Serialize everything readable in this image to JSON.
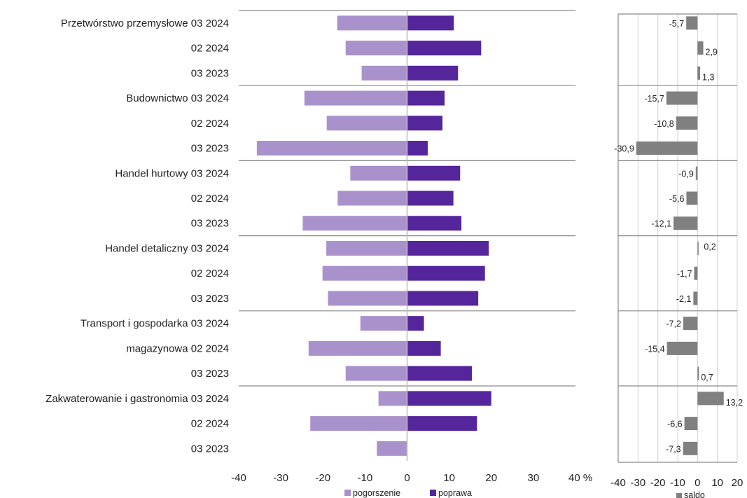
{
  "chart_data": [
    {
      "type": "bar",
      "orientation": "horizontal",
      "stacked": "diverging",
      "unit": "%",
      "rows": [
        {
          "label": "Przetwórstwo przemysłowe 03 2024",
          "pogorszenie": -16.6,
          "poprawa": 11.1
        },
        {
          "label": "02 2024",
          "pogorszenie": -14.6,
          "poprawa": 17.6
        },
        {
          "label": "03 2023",
          "pogorszenie": -10.8,
          "poprawa": 12.1
        },
        {
          "label": "Budownictwo 03 2024",
          "pogorszenie": -24.4,
          "poprawa": 8.9
        },
        {
          "label": "02 2024",
          "pogorszenie": -19.1,
          "poprawa": 8.4
        },
        {
          "label": "03 2023",
          "pogorszenie": -35.7,
          "poprawa": 4.9
        },
        {
          "label": "Handel hurtowy 03 2024",
          "pogorszenie": -13.5,
          "poprawa": 12.6
        },
        {
          "label": "02 2024",
          "pogorszenie": -16.5,
          "poprawa": 11.0
        },
        {
          "label": "03 2023",
          "pogorszenie": -24.8,
          "poprawa": 12.9
        },
        {
          "label": "Handel detaliczny 03 2024",
          "pogorszenie": -19.2,
          "poprawa": 19.4
        },
        {
          "label": "02 2024",
          "pogorszenie": -20.1,
          "poprawa": 18.5
        },
        {
          "label": "03 2023",
          "pogorszenie": -18.8,
          "poprawa": 16.9
        },
        {
          "label": "Transport i gospodarka 03 2024",
          "pogorszenie": -11.1,
          "poprawa": 4.0
        },
        {
          "label": "magazynowa 02 2024",
          "pogorszenie": -23.4,
          "poprawa": 8.0
        },
        {
          "label": "03 2023",
          "pogorszenie": -14.6,
          "poprawa": 15.4
        },
        {
          "label": "Zakwaterowanie i gastronomia 03 2024",
          "pogorszenie": -6.8,
          "poprawa": 20.0
        },
        {
          "label": "02 2024",
          "pogorszenie": -23.0,
          "poprawa": 16.6
        },
        {
          "label": "03 2023",
          "pogorszenie": -7.2,
          "poprawa": 0.0
        }
      ],
      "xlim": [
        -40,
        40
      ],
      "xticks": [
        "-40",
        "-30",
        "-20",
        "-10",
        "0",
        "10",
        "20",
        "30",
        "40 %"
      ],
      "series": [
        {
          "name": "pogorszenie",
          "color": "#a992cc"
        },
        {
          "name": "poprawa",
          "color": "#55259c"
        }
      ],
      "grid": false,
      "legend": "bottom"
    },
    {
      "type": "bar",
      "orientation": "horizontal",
      "series": [
        {
          "name": "saldo",
          "color": "#808080"
        }
      ],
      "values": [
        -5.7,
        2.9,
        1.3,
        -15.7,
        -10.8,
        -30.9,
        -0.9,
        -5.6,
        -12.1,
        0.2,
        -1.7,
        -2.1,
        -7.2,
        -15.4,
        0.7,
        13.2,
        -6.6,
        -7.3
      ],
      "value_labels": [
        "-5,7",
        "2,9",
        "1,3",
        "-15,7",
        "-10,8",
        "-30,9",
        "-0,9",
        "-5,6",
        "-12,1",
        "0,2",
        "-1,7",
        "-2,1",
        "-7,2",
        "-15,4",
        "0,7",
        "13,2",
        "-6,6",
        "-7,3"
      ],
      "xlim": [
        -40,
        20
      ],
      "xticks": [
        "-40",
        "-30",
        "-20",
        "-10",
        "0",
        "10",
        "20"
      ],
      "grid": true,
      "legend": "bottom"
    }
  ]
}
